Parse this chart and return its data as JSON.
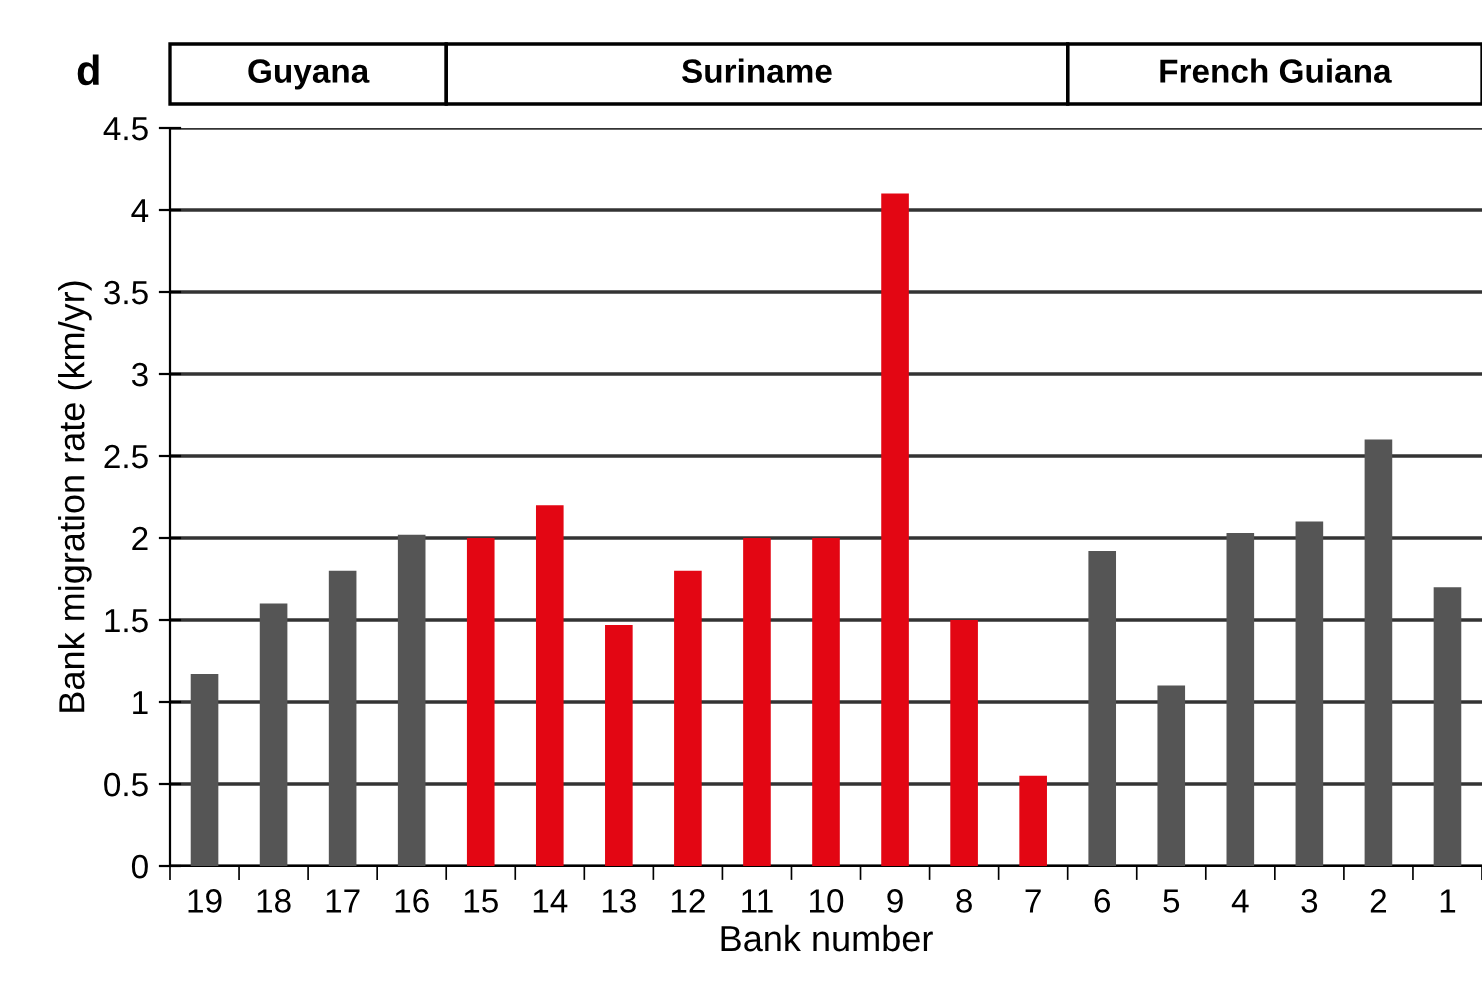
{
  "chart_data": {
    "type": "bar",
    "title": "d",
    "xlabel": "Bank number",
    "ylabel": "Bank migration rate (km/yr)",
    "categories": [
      "19",
      "18",
      "17",
      "16",
      "15",
      "14",
      "13",
      "12",
      "11",
      "10",
      "9",
      "8",
      "7",
      "6",
      "5",
      "4",
      "3",
      "2",
      "1"
    ],
    "values": [
      1.17,
      1.6,
      1.8,
      2.02,
      2.0,
      2.2,
      1.47,
      1.8,
      2.0,
      2.0,
      4.1,
      1.5,
      0.55,
      1.92,
      1.1,
      2.03,
      2.1,
      2.6,
      1.7
    ],
    "colors": [
      "#555555",
      "#555555",
      "#555555",
      "#555555",
      "#e30613",
      "#e30613",
      "#e30613",
      "#e30613",
      "#e30613",
      "#e30613",
      "#e30613",
      "#e30613",
      "#e30613",
      "#555555",
      "#555555",
      "#555555",
      "#555555",
      "#555555",
      "#555555"
    ],
    "ylim": [
      0,
      4.5
    ],
    "yticks": [
      0,
      0.5,
      1,
      1.5,
      2,
      2.5,
      3,
      3.5,
      4,
      4.5
    ],
    "grid": "y",
    "annotations": [
      "Guyana",
      "Suriname",
      "French Guiana"
    ]
  }
}
